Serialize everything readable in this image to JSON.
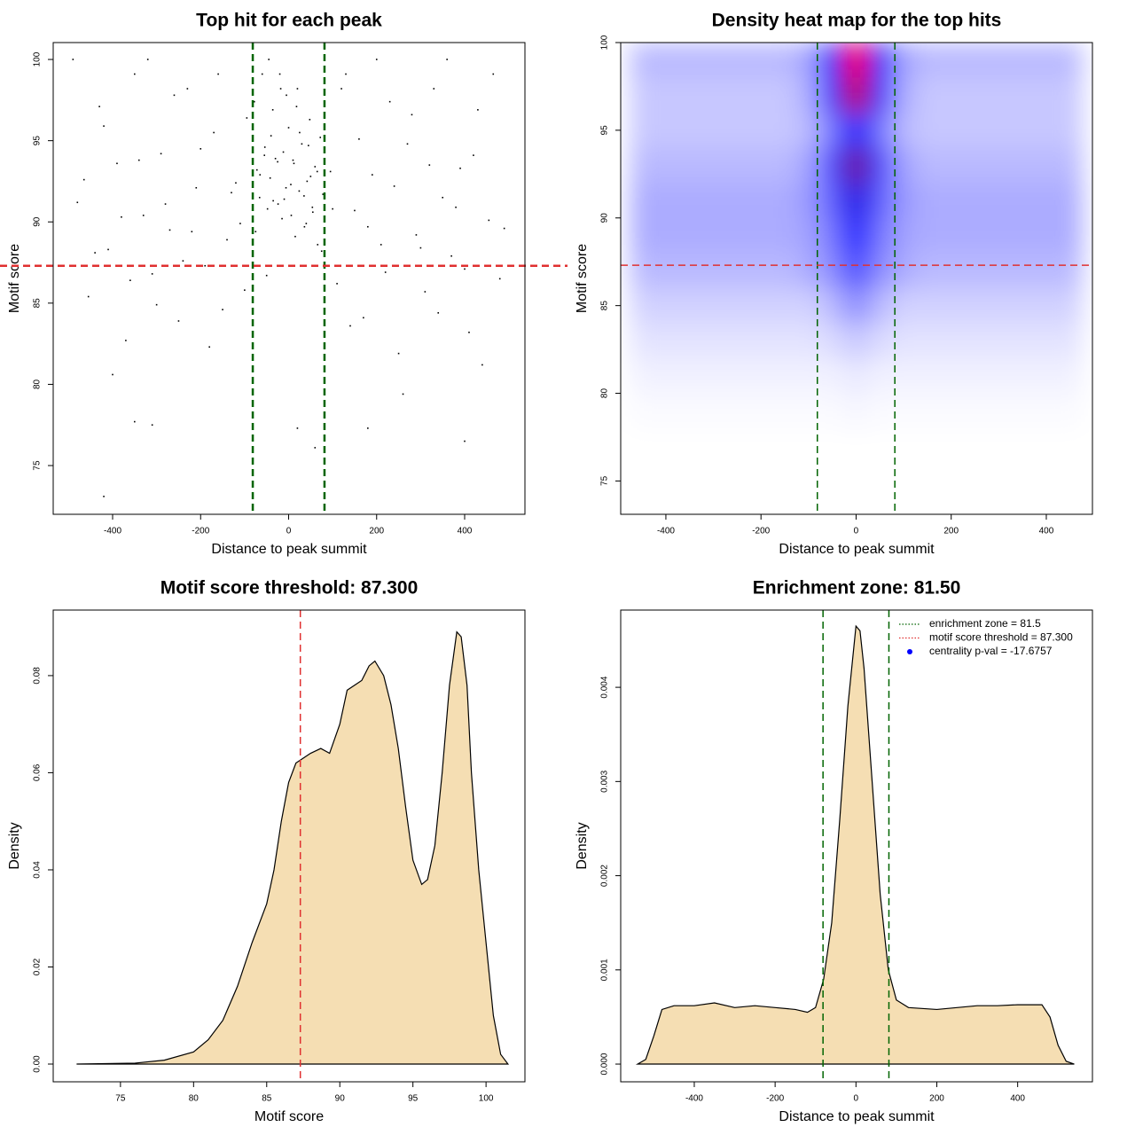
{
  "chart_data": [
    {
      "type": "scatter",
      "title": "Top hit for each peak",
      "xlabel": "Distance to peak summit",
      "ylabel": "Motif score",
      "xlim": [
        -535,
        537
      ],
      "ylim": [
        72,
        101.04
      ],
      "xticks": [
        -400,
        -200,
        0,
        200,
        400
      ],
      "yticks": [
        75,
        80,
        85,
        90,
        95,
        100
      ],
      "color": "#000000",
      "vlines": [
        -81.5,
        81.5
      ],
      "vline_color": "#006400",
      "hline": 87.3,
      "hline_color": "#e03030",
      "x": [
        -480,
        -455,
        -430,
        -410,
        -390,
        -370,
        -350,
        -330,
        -310,
        -290,
        -270,
        -250,
        -230,
        -210,
        -190,
        -170,
        -150,
        -130,
        -110,
        -95,
        95,
        110,
        130,
        150,
        170,
        190,
        210,
        230,
        250,
        270,
        290,
        310,
        330,
        350,
        370,
        390,
        410,
        430,
        455,
        480,
        -490,
        -465,
        -440,
        -420,
        -400,
        -380,
        -360,
        -340,
        -320,
        -300,
        -280,
        -260,
        -240,
        -220,
        -200,
        -180,
        -160,
        -140,
        -120,
        -100,
        100,
        120,
        140,
        160,
        180,
        200,
        220,
        240,
        260,
        280,
        300,
        320,
        340,
        360,
        380,
        400,
        420,
        440,
        465,
        490,
        -420,
        -310,
        60,
        180,
        400,
        20,
        -350,
        -78,
        -72,
        -66,
        -60,
        -54,
        -48,
        -42,
        -36,
        -30,
        -24,
        -18,
        -12,
        -6,
        0,
        6,
        12,
        18,
        24,
        30,
        36,
        42,
        48,
        54,
        60,
        66,
        72,
        78,
        -75,
        -65,
        -55,
        -45,
        -35,
        -25,
        -15,
        -5,
        5,
        15,
        25,
        35,
        45,
        55,
        65,
        75,
        -50,
        -40,
        -20,
        -10,
        10,
        20,
        40,
        50
      ],
      "values": [
        91.2,
        85.4,
        97.1,
        88.3,
        93.6,
        82.7,
        99.1,
        90.4,
        86.8,
        94.2,
        89.5,
        83.9,
        98.2,
        92.1,
        87.3,
        95.5,
        84.6,
        91.8,
        89.9,
        96.4,
        93.1,
        86.2,
        99.1,
        90.7,
        84.1,
        92.9,
        88.6,
        97.4,
        81.9,
        94.8,
        89.2,
        85.7,
        98.2,
        91.5,
        87.9,
        93.3,
        83.2,
        96.9,
        90.1,
        86.5,
        100,
        92.6,
        88.1,
        95.9,
        80.6,
        90.3,
        86.4,
        93.8,
        100,
        84.9,
        91.1,
        97.8,
        87.6,
        89.4,
        94.5,
        82.3,
        99.1,
        88.9,
        92.4,
        85.8,
        90.8,
        98.2,
        83.6,
        95.1,
        89.7,
        100,
        86.9,
        92.2,
        79.4,
        96.6,
        88.4,
        93.5,
        84.4,
        100,
        90.9,
        87.1,
        94.1,
        81.2,
        99.1,
        89.6,
        73.1,
        77.5,
        76.1,
        77.3,
        76.5,
        77.3,
        77.7,
        97.4,
        93.2,
        91.5,
        99.1,
        94.6,
        90.8,
        92.7,
        96.9,
        93.9,
        91.1,
        98.2,
        94.3,
        92.1,
        95.8,
        90.4,
        93.6,
        97.1,
        91.9,
        94.8,
        89.7,
        92.5,
        96.3,
        90.9,
        93.4,
        88.6,
        95.2,
        91.7,
        89.4,
        92.9,
        94.1,
        100,
        91.3,
        93.7,
        90.2,
        97.8,
        92.3,
        89.1,
        95.5,
        91.6,
        94.7,
        90.6,
        93.1,
        88.2,
        86.7,
        95.3,
        99.1,
        91.4,
        93.8,
        98.2,
        89.9,
        92.8
      ]
    },
    {
      "type": "heatmap",
      "title": "Density heat map for the top hits",
      "xlabel": "Distance to peak summit",
      "ylabel": "Motif score",
      "xlim": [
        -495,
        497
      ],
      "ylim": [
        73.1,
        100
      ],
      "xticks": [
        -400,
        -200,
        0,
        200,
        400
      ],
      "yticks": [
        75,
        80,
        85,
        90,
        95,
        100
      ],
      "vlines": [
        -81.5,
        81.5
      ],
      "vline_color": "#006400",
      "hline": 87.3,
      "hline_color": "#e03030",
      "colormap": [
        "#ffffff",
        "#0000ff",
        "#ff0000"
      ],
      "x": [
        -450,
        -400,
        -350,
        -300,
        -250,
        -200,
        -150,
        -100,
        -50,
        0,
        50,
        100,
        150,
        200,
        250,
        300,
        350,
        400,
        450
      ],
      "y": [
        99,
        97,
        95,
        93,
        91,
        89,
        87,
        85,
        83,
        81,
        79,
        77,
        75
      ],
      "z": [
        [
          0.15,
          0.15,
          0.15,
          0.15,
          0.15,
          0.15,
          0.15,
          0.2,
          0.5,
          1.0,
          0.5,
          0.2,
          0.15,
          0.15,
          0.15,
          0.15,
          0.15,
          0.15,
          0.15
        ],
        [
          0.12,
          0.12,
          0.12,
          0.12,
          0.12,
          0.12,
          0.12,
          0.18,
          0.45,
          0.9,
          0.45,
          0.18,
          0.12,
          0.12,
          0.12,
          0.12,
          0.12,
          0.12,
          0.12
        ],
        [
          0.12,
          0.12,
          0.12,
          0.12,
          0.12,
          0.12,
          0.12,
          0.15,
          0.3,
          0.55,
          0.3,
          0.15,
          0.12,
          0.12,
          0.12,
          0.12,
          0.12,
          0.12,
          0.12
        ],
        [
          0.15,
          0.15,
          0.15,
          0.15,
          0.15,
          0.15,
          0.15,
          0.2,
          0.4,
          0.75,
          0.4,
          0.2,
          0.15,
          0.15,
          0.15,
          0.15,
          0.15,
          0.15,
          0.15
        ],
        [
          0.18,
          0.18,
          0.18,
          0.18,
          0.18,
          0.18,
          0.18,
          0.22,
          0.35,
          0.6,
          0.35,
          0.22,
          0.18,
          0.18,
          0.18,
          0.18,
          0.18,
          0.18,
          0.18
        ],
        [
          0.18,
          0.18,
          0.18,
          0.18,
          0.18,
          0.18,
          0.18,
          0.2,
          0.3,
          0.5,
          0.3,
          0.2,
          0.18,
          0.18,
          0.18,
          0.18,
          0.18,
          0.18,
          0.18
        ],
        [
          0.15,
          0.15,
          0.15,
          0.15,
          0.15,
          0.15,
          0.15,
          0.18,
          0.25,
          0.4,
          0.25,
          0.18,
          0.15,
          0.15,
          0.15,
          0.15,
          0.15,
          0.15,
          0.15
        ],
        [
          0.1,
          0.1,
          0.1,
          0.1,
          0.1,
          0.1,
          0.1,
          0.1,
          0.15,
          0.25,
          0.15,
          0.1,
          0.1,
          0.1,
          0.1,
          0.1,
          0.1,
          0.1,
          0.1
        ],
        [
          0.06,
          0.06,
          0.06,
          0.06,
          0.06,
          0.06,
          0.06,
          0.06,
          0.08,
          0.12,
          0.08,
          0.06,
          0.06,
          0.06,
          0.06,
          0.06,
          0.06,
          0.06,
          0.06
        ],
        [
          0.03,
          0.03,
          0.03,
          0.03,
          0.03,
          0.03,
          0.03,
          0.03,
          0.03,
          0.05,
          0.03,
          0.03,
          0.03,
          0.03,
          0.03,
          0.03,
          0.03,
          0.03,
          0.03
        ],
        [
          0.01,
          0.01,
          0.01,
          0.01,
          0.01,
          0.01,
          0.01,
          0.01,
          0.01,
          0.02,
          0.01,
          0.01,
          0.01,
          0.01,
          0.01,
          0.01,
          0.01,
          0.01,
          0.01
        ],
        [
          0,
          0,
          0,
          0,
          0,
          0,
          0,
          0,
          0,
          0,
          0,
          0,
          0,
          0,
          0,
          0,
          0,
          0,
          0
        ],
        [
          0,
          0,
          0,
          0,
          0,
          0,
          0,
          0,
          0,
          0,
          0,
          0,
          0,
          0,
          0,
          0,
          0,
          0,
          0
        ]
      ]
    },
    {
      "type": "area",
      "title": "Motif score threshold: 87.300",
      "xlabel": "Motif score",
      "ylabel": "Density",
      "xlim": [
        70.4,
        102.66
      ],
      "ylim": [
        -0.00365,
        0.0935
      ],
      "xticks": [
        75,
        80,
        85,
        90,
        95,
        100
      ],
      "yticks": [
        {
          "value": 0,
          "label": "0.00"
        },
        {
          "value": 0.02,
          "label": "0.02"
        },
        {
          "value": 0.04,
          "label": "0.04"
        },
        {
          "value": 0.06,
          "label": "0.06"
        },
        {
          "value": 0.08,
          "label": "0.08"
        }
      ],
      "color": "#f5deb3",
      "vlines": [
        87.3
      ],
      "vline_color": "#e03030",
      "x": [
        72,
        76,
        78,
        80,
        81,
        82,
        83,
        84,
        84.5,
        85,
        85.5,
        86,
        86.5,
        87,
        87.5,
        88,
        88.7,
        89.3,
        90,
        90.5,
        91,
        91.5,
        92,
        92.4,
        93,
        93.5,
        94,
        94.5,
        95,
        95.6,
        96,
        96.5,
        97,
        97.5,
        98,
        98.3,
        98.7,
        99,
        99.5,
        100,
        100.5,
        101,
        101.5
      ],
      "values": [
        0,
        0.0002,
        0.0008,
        0.0025,
        0.005,
        0.009,
        0.016,
        0.025,
        0.029,
        0.033,
        0.04,
        0.05,
        0.058,
        0.062,
        0.063,
        0.064,
        0.065,
        0.064,
        0.07,
        0.077,
        0.078,
        0.079,
        0.082,
        0.083,
        0.08,
        0.074,
        0.065,
        0.053,
        0.042,
        0.037,
        0.038,
        0.045,
        0.06,
        0.078,
        0.089,
        0.088,
        0.078,
        0.06,
        0.04,
        0.025,
        0.01,
        0.002,
        0
      ]
    },
    {
      "type": "area",
      "title": "Enrichment zone: 81.50",
      "xlabel": "Distance to peak summit",
      "ylabel": "Density",
      "xlim": [
        -582,
        585
      ],
      "ylim": [
        -0.000188,
        0.00482
      ],
      "xticks": [
        -400,
        -200,
        0,
        200,
        400
      ],
      "yticks": [
        {
          "value": 0,
          "label": "0.000"
        },
        {
          "value": 0.001,
          "label": "0.001"
        },
        {
          "value": 0.002,
          "label": "0.002"
        },
        {
          "value": 0.003,
          "label": "0.003"
        },
        {
          "value": 0.004,
          "label": "0.004"
        }
      ],
      "color": "#f5deb3",
      "vlines": [
        -81.5,
        81.5
      ],
      "vline_color": "#006400",
      "x": [
        -540,
        -520,
        -500,
        -480,
        -450,
        -400,
        -350,
        -300,
        -250,
        -200,
        -150,
        -120,
        -100,
        -80,
        -60,
        -40,
        -20,
        0,
        10,
        20,
        40,
        60,
        80,
        100,
        130,
        200,
        250,
        300,
        350,
        400,
        460,
        480,
        500,
        520,
        540
      ],
      "values": [
        0,
        5e-05,
        0.0003,
        0.00058,
        0.00062,
        0.00062,
        0.00065,
        0.0006,
        0.00062,
        0.0006,
        0.00058,
        0.00055,
        0.0006,
        0.0009,
        0.0015,
        0.0026,
        0.0038,
        0.00465,
        0.0046,
        0.0042,
        0.003,
        0.0018,
        0.001,
        0.00068,
        0.0006,
        0.00058,
        0.0006,
        0.00062,
        0.00062,
        0.00063,
        0.00063,
        0.0005,
        0.0002,
        3e-05,
        0
      ],
      "legend_position": "topright",
      "legend": [
        {
          "label": "enrichment zone = 81.5",
          "color": "#006400",
          "symbol": "dotted"
        },
        {
          "label": "motif score threshold = 87.300",
          "color": "#e03030",
          "symbol": "dotted"
        },
        {
          "label": "centrality p-val = -17.6757",
          "color": "#0000ff",
          "symbol": "point"
        }
      ]
    }
  ]
}
